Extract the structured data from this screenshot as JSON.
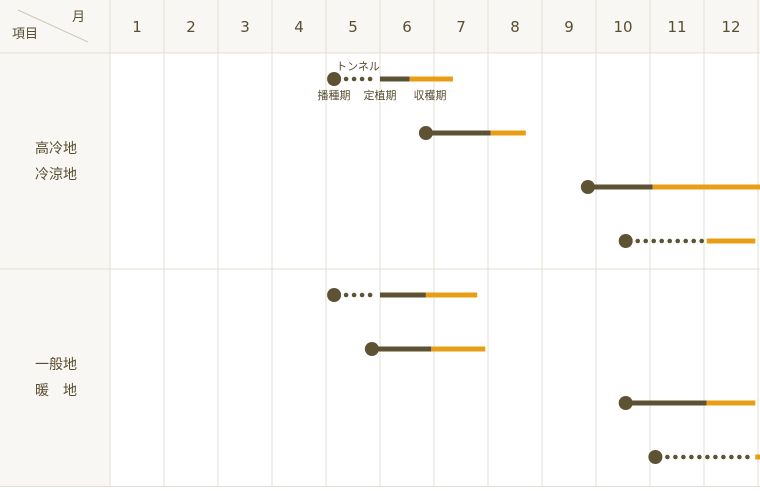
{
  "chart_data": {
    "type": "gantt",
    "corner": {
      "top_label": "月",
      "bottom_label": "項目"
    },
    "months": [
      "1",
      "2",
      "3",
      "4",
      "5",
      "6",
      "7",
      "8",
      "9",
      "10",
      "11",
      "12"
    ],
    "regions": [
      {
        "label_lines": [
          "高冷地",
          "冷涼地"
        ],
        "row_count": 4
      },
      {
        "label_lines": [
          "一般地",
          "暖　地"
        ],
        "row_count": 4
      }
    ],
    "legend": {
      "note": "トンネル",
      "sow_label": "播種期",
      "plant_label": "定植期",
      "harvest_label": "収穫期"
    },
    "stage_colors": {
      "marker": "#5e5234",
      "nursery": "#5e5234",
      "field": "#5e5234",
      "harvest": "#e89e14"
    },
    "rows": [
      {
        "region": 0,
        "sow": 5.15,
        "dotted_until": 6.0,
        "plant": 6.0,
        "harvest_start": 6.55,
        "harvest_end": 7.35
      },
      {
        "region": 0,
        "sow": 6.85,
        "dotted_until": null,
        "plant": null,
        "harvest_start": 8.05,
        "harvest_end": 8.7
      },
      {
        "region": 0,
        "sow": 9.85,
        "dotted_until": null,
        "plant": null,
        "harvest_start": 11.05,
        "harvest_end": 13.2
      },
      {
        "region": 0,
        "sow": 10.55,
        "dotted_until": 12.05,
        "plant": 12.05,
        "harvest_start": 12.05,
        "harvest_end": 12.95
      },
      {
        "region": 1,
        "sow": 5.15,
        "dotted_until": 6.0,
        "plant": 6.0,
        "harvest_start": 6.85,
        "harvest_end": 7.8
      },
      {
        "region": 1,
        "sow": 5.85,
        "dotted_until": null,
        "plant": null,
        "harvest_start": 6.95,
        "harvest_end": 7.95
      },
      {
        "region": 1,
        "sow": 10.55,
        "dotted_until": null,
        "plant": null,
        "harvest_start": 12.05,
        "harvest_end": 12.95
      },
      {
        "region": 1,
        "sow": 11.1,
        "dotted_until": 12.95,
        "plant": 12.95,
        "harvest_start": 12.95,
        "harvest_end": 14.0
      }
    ]
  }
}
